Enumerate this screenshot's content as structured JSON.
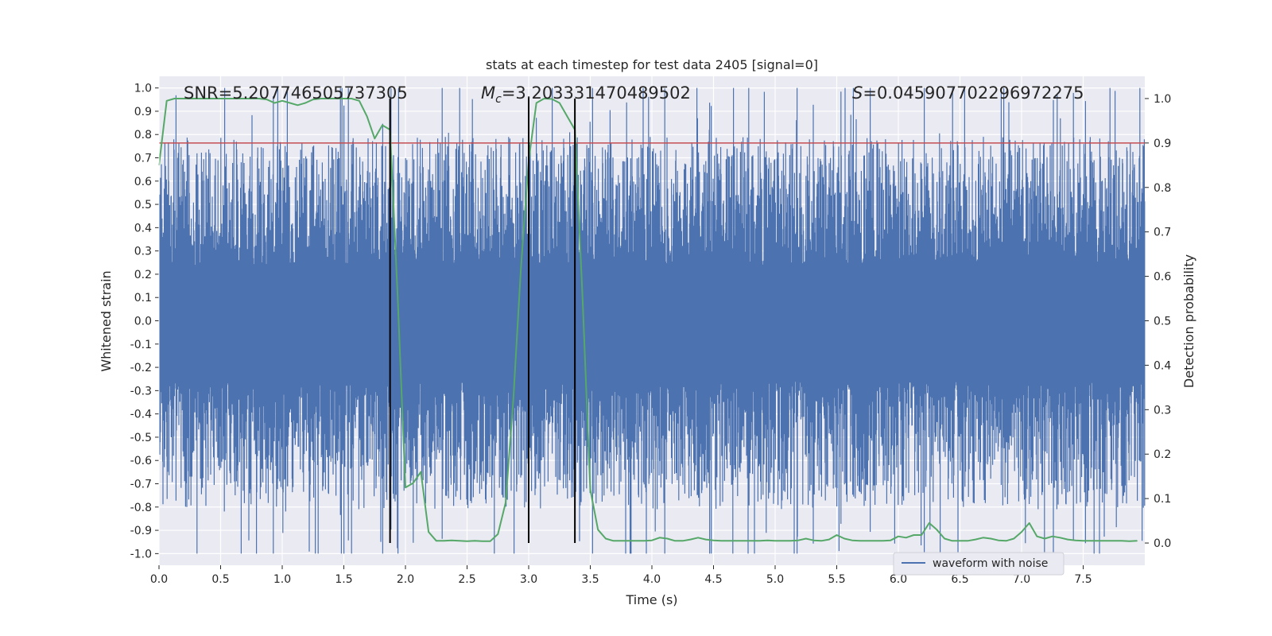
{
  "chart_data": {
    "type": "line",
    "title": "stats at each timestep for test data 2405 [signal=0]",
    "xlabel": "Time (s)",
    "ylabel_left": "Whitened strain",
    "ylabel_right": "Detection probability",
    "xlim": [
      0,
      8
    ],
    "ylim_left": [
      -1.05,
      1.05
    ],
    "ylim_right": [
      -0.05,
      1.05
    ],
    "x_ticks": [
      "0.0",
      "0.5",
      "1.0",
      "1.5",
      "2.0",
      "2.5",
      "3.0",
      "3.5",
      "4.0",
      "4.5",
      "5.0",
      "5.5",
      "6.0",
      "6.5",
      "7.0",
      "7.5"
    ],
    "y_left_ticks": [
      "-1.0",
      "-0.9",
      "-0.8",
      "-0.7",
      "-0.6",
      "-0.5",
      "-0.4",
      "-0.3",
      "-0.2",
      "-0.1",
      "0.0",
      "0.1",
      "0.2",
      "0.3",
      "0.4",
      "0.5",
      "0.6",
      "0.7",
      "0.8",
      "0.9",
      "1.0"
    ],
    "y_right_ticks": [
      "0.0",
      "0.1",
      "0.2",
      "0.3",
      "0.4",
      "0.5",
      "0.6",
      "0.7",
      "0.8",
      "0.9",
      "1.0"
    ],
    "annotations": {
      "snr": "SNR=5.207746505737305",
      "mc_symbol": "M",
      "mc_sub": "c",
      "mc_value": "=3.203331470489502",
      "s_symbol": "S",
      "s_value": "=0.045907702296972275"
    },
    "legend": [
      "waveform with noise"
    ],
    "threshold": 0.9,
    "vertical_lines": [
      1.875,
      3.0,
      3.375
    ],
    "detection_probability": {
      "t": [
        0.0,
        0.0625,
        0.125,
        0.1875,
        0.25,
        0.3125,
        0.375,
        0.4375,
        0.5,
        0.5625,
        0.625,
        0.6875,
        0.75,
        0.8125,
        0.875,
        0.9375,
        1.0,
        1.0625,
        1.125,
        1.1875,
        1.25,
        1.3125,
        1.375,
        1.4375,
        1.5,
        1.5625,
        1.625,
        1.6875,
        1.75,
        1.8125,
        1.875,
        1.9375,
        2.0,
        2.0625,
        2.125,
        2.1875,
        2.25,
        2.3125,
        2.375,
        2.4375,
        2.5,
        2.5625,
        2.625,
        2.6875,
        2.75,
        2.8125,
        2.875,
        2.9375,
        3.0,
        3.0625,
        3.125,
        3.1875,
        3.25,
        3.3125,
        3.375,
        3.4375,
        3.5,
        3.5625,
        3.625,
        3.6875,
        3.75,
        3.8125,
        3.875,
        3.9375,
        4.0,
        4.0625,
        4.125,
        4.1875,
        4.25,
        4.3125,
        4.375,
        4.4375,
        4.5,
        4.5625,
        4.625,
        4.6875,
        4.75,
        4.8125,
        4.875,
        4.9375,
        5.0,
        5.0625,
        5.125,
        5.1875,
        5.25,
        5.3125,
        5.375,
        5.4375,
        5.5,
        5.5625,
        5.625,
        5.6875,
        5.75,
        5.8125,
        5.875,
        5.9375,
        6.0,
        6.0625,
        6.125,
        6.1875,
        6.25,
        6.3125,
        6.375,
        6.4375,
        6.5,
        6.5625,
        6.625,
        6.6875,
        6.75,
        6.8125,
        6.875,
        6.9375,
        7.0,
        7.0625,
        7.125,
        7.1875,
        7.25,
        7.3125,
        7.375,
        7.4375,
        7.5,
        7.5625,
        7.625,
        7.6875,
        7.75,
        7.8125,
        7.875,
        7.9375
      ],
      "p": [
        0.85,
        0.995,
        1.0,
        1.0,
        1.0,
        1.0,
        1.0,
        1.0,
        1.0,
        1.0,
        1.0,
        1.0,
        1.0,
        1.0,
        0.998,
        0.99,
        0.995,
        0.99,
        0.985,
        0.99,
        0.998,
        1.0,
        1.0,
        1.0,
        1.0,
        1.0,
        0.995,
        0.96,
        0.91,
        0.94,
        0.93,
        0.55,
        0.125,
        0.135,
        0.16,
        0.025,
        0.005,
        0.005,
        0.006,
        0.005,
        0.004,
        0.005,
        0.004,
        0.004,
        0.02,
        0.09,
        0.32,
        0.62,
        0.86,
        0.99,
        1.0,
        0.999,
        0.99,
        0.96,
        0.93,
        0.55,
        0.12,
        0.03,
        0.01,
        0.005,
        0.005,
        0.005,
        0.005,
        0.005,
        0.006,
        0.012,
        0.01,
        0.005,
        0.005,
        0.008,
        0.012,
        0.008,
        0.006,
        0.005,
        0.005,
        0.005,
        0.005,
        0.005,
        0.005,
        0.006,
        0.005,
        0.005,
        0.005,
        0.006,
        0.01,
        0.006,
        0.005,
        0.008,
        0.018,
        0.01,
        0.006,
        0.005,
        0.005,
        0.005,
        0.005,
        0.006,
        0.015,
        0.012,
        0.018,
        0.018,
        0.045,
        0.03,
        0.01,
        0.005,
        0.005,
        0.005,
        0.008,
        0.012,
        0.01,
        0.006,
        0.005,
        0.01,
        0.025,
        0.045,
        0.015,
        0.01,
        0.015,
        0.012,
        0.008,
        0.006,
        0.005,
        0.005,
        0.005,
        0.005,
        0.005,
        0.005,
        0.004,
        0.005
      ]
    },
    "colors": {
      "background": "#eaeaf2",
      "grid": "#ffffff",
      "waveform": "#4c72b0",
      "probability": "#55a868",
      "threshold": "#c44e52",
      "vline": "#000000"
    }
  }
}
